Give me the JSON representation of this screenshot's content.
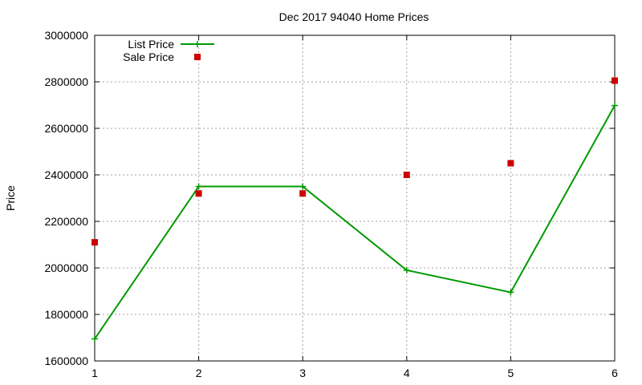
{
  "chart_data": {
    "type": "line",
    "title": "Dec 2017 94040 Home Prices",
    "xlabel": "",
    "ylabel": "Price",
    "x": [
      1,
      2,
      3,
      4,
      5,
      6
    ],
    "xlim": [
      1,
      6
    ],
    "ylim": [
      1600000,
      3000000
    ],
    "xticks": [
      "1",
      "2",
      "3",
      "4",
      "5",
      "6"
    ],
    "yticks": [
      "1600000",
      "1800000",
      "2000000",
      "2200000",
      "2400000",
      "2600000",
      "2800000",
      "3000000"
    ],
    "grid": true,
    "legend_position": "top-left",
    "series": [
      {
        "name": "List Price",
        "style": "line-with-plus-markers",
        "color": "#009900",
        "values": [
          1695000,
          2350000,
          2350000,
          1990000,
          1895000,
          2698000
        ]
      },
      {
        "name": "Sale Price",
        "style": "square-markers",
        "color": "#cc0000",
        "values": [
          2110000,
          2320000,
          2320000,
          2400000,
          2450000,
          2805000
        ]
      }
    ]
  }
}
